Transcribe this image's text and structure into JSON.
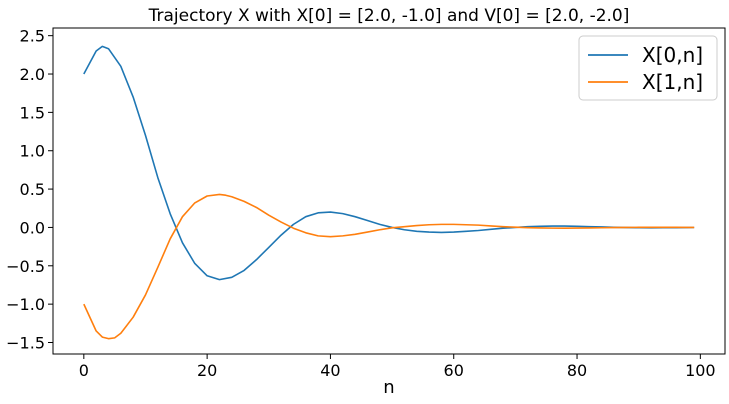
{
  "chart_data": {
    "type": "line",
    "title": "Trajectory X with X[0] = [2.0, -1.0] and V[0] = [2.0, -2.0]",
    "xlabel": "n",
    "ylabel": "",
    "xlim": [
      -5,
      104
    ],
    "ylim": [
      -1.65,
      2.6
    ],
    "xticks": [
      0,
      20,
      40,
      60,
      80,
      100
    ],
    "xtick_labels": [
      "0",
      "20",
      "40",
      "60",
      "80",
      "100"
    ],
    "yticks": [
      2.5,
      2.0,
      1.5,
      1.0,
      0.5,
      0.0,
      -0.5,
      -1.0,
      -1.5
    ],
    "ytick_labels": [
      "2.5",
      "2.0",
      "1.5",
      "1.0",
      "0.5",
      "0.0",
      "−0.5",
      "−1.0",
      "−1.5"
    ],
    "grid": false,
    "legend_position": "top-right",
    "series": [
      {
        "name": "X[0,n]",
        "color": "#1f77b4",
        "x": [
          0,
          2,
          3,
          4,
          6,
          8,
          10,
          12,
          14,
          16,
          18,
          20,
          22,
          24,
          26,
          28,
          30,
          32,
          34,
          36,
          38,
          40,
          42,
          44,
          46,
          48,
          50,
          52,
          54,
          56,
          58,
          60,
          62,
          64,
          66,
          68,
          70,
          72,
          74,
          76,
          78,
          80,
          82,
          84,
          86,
          88,
          90,
          92,
          94,
          96,
          98,
          99
        ],
        "y": [
          2.0,
          2.3,
          2.36,
          2.33,
          2.1,
          1.7,
          1.2,
          0.65,
          0.18,
          -0.2,
          -0.47,
          -0.63,
          -0.68,
          -0.65,
          -0.56,
          -0.42,
          -0.26,
          -0.1,
          0.04,
          0.14,
          0.19,
          0.2,
          0.18,
          0.14,
          0.09,
          0.04,
          0.0,
          -0.03,
          -0.05,
          -0.06,
          -0.065,
          -0.06,
          -0.05,
          -0.04,
          -0.025,
          -0.01,
          0.0,
          0.01,
          0.015,
          0.018,
          0.018,
          0.015,
          0.01,
          0.006,
          0.002,
          -0.002,
          -0.004,
          -0.005,
          -0.004,
          -0.003,
          -0.002,
          -0.001
        ]
      },
      {
        "name": "X[1,n]",
        "color": "#ff7f0e",
        "x": [
          0,
          2,
          3,
          4,
          5,
          6,
          8,
          10,
          12,
          14,
          16,
          18,
          20,
          22,
          23,
          24,
          26,
          28,
          30,
          32,
          34,
          36,
          38,
          40,
          42,
          44,
          46,
          48,
          50,
          52,
          54,
          56,
          58,
          60,
          62,
          64,
          66,
          68,
          70,
          72,
          74,
          76,
          78,
          80,
          82,
          84,
          86,
          88,
          90,
          92,
          94,
          96,
          98,
          99
        ],
        "y": [
          -1.0,
          -1.35,
          -1.43,
          -1.45,
          -1.44,
          -1.38,
          -1.17,
          -0.88,
          -0.52,
          -0.15,
          0.14,
          0.32,
          0.41,
          0.43,
          0.42,
          0.4,
          0.34,
          0.26,
          0.16,
          0.07,
          -0.01,
          -0.07,
          -0.11,
          -0.12,
          -0.11,
          -0.09,
          -0.06,
          -0.03,
          -0.005,
          0.01,
          0.025,
          0.035,
          0.04,
          0.04,
          0.035,
          0.03,
          0.02,
          0.01,
          0.003,
          -0.003,
          -0.007,
          -0.009,
          -0.01,
          -0.008,
          -0.006,
          -0.004,
          -0.002,
          0.0,
          0.001,
          0.002,
          0.002,
          0.001,
          0.0,
          0.0
        ]
      }
    ]
  }
}
